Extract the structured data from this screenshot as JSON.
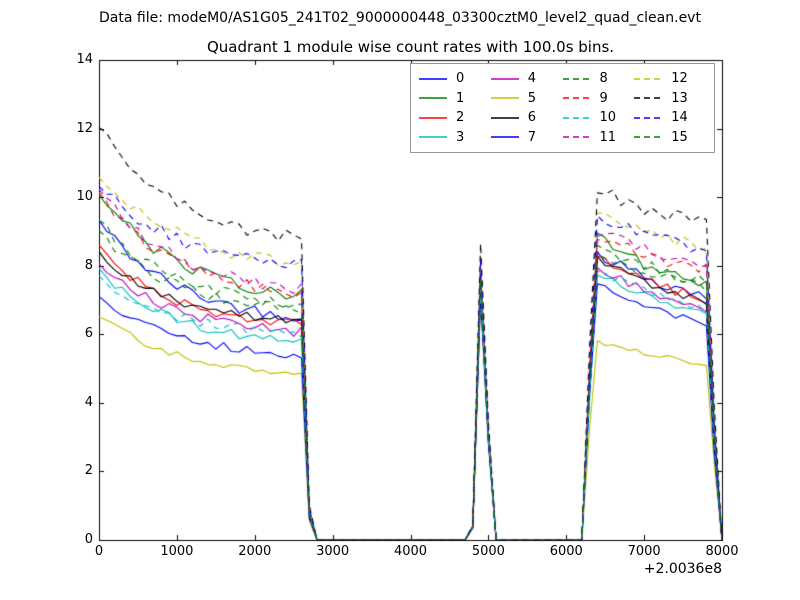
{
  "header": {
    "data_file": "Data file: modeM0/AS1G05_241T02_9000000448_03300cztM0_level2_quad_clean.evt"
  },
  "chart_data": {
    "type": "line",
    "title": "Quadrant 1 module wise count rates with 100.0s bins.",
    "xlabel": "",
    "ylabel": "",
    "xlim": [
      0,
      8000
    ],
    "ylim": [
      0,
      14
    ],
    "x_ticks": [
      0,
      1000,
      2000,
      3000,
      4000,
      5000,
      6000,
      7000,
      8000
    ],
    "y_ticks": [
      0,
      2,
      4,
      6,
      8,
      10,
      12,
      14
    ],
    "x_offset_label": "+2.0036e8",
    "bin_seconds": 100,
    "grid": false,
    "legend": {
      "location": "upper center",
      "columns": 4,
      "order": "column-major"
    },
    "profile": {
      "decay_tau_s": 1000,
      "segment1": {
        "x_start": 0,
        "x_end": 2700
      },
      "gap1": {
        "x_start": 2800,
        "x_end": 4700
      },
      "spike": {
        "x_rise": 4800,
        "x_peak": 4900,
        "x_fall": 5100
      },
      "gap2": {
        "x_start": 5100,
        "x_end": 6200
      },
      "segment3": {
        "x_rise": 6250,
        "x_peak": 6400,
        "x_end": 7950,
        "decay_tau_s": 1400
      }
    },
    "series": [
      {
        "label": "0",
        "color": "#0000ff",
        "linestyle": "solid",
        "start": 9.3,
        "plateau": 6.3,
        "spike_peak": 7.5,
        "seg3_peak": 8.4,
        "seg3_end": 6.4,
        "jitter": 0.18
      },
      {
        "label": "1",
        "color": "#008000",
        "linestyle": "solid",
        "start": 10.2,
        "plateau": 6.9,
        "spike_peak": 7.8,
        "seg3_peak": 8.8,
        "seg3_end": 6.6,
        "jitter": 0.18
      },
      {
        "label": "2",
        "color": "#ff0000",
        "linestyle": "solid",
        "start": 8.5,
        "plateau": 6.1,
        "spike_peak": 7.4,
        "seg3_peak": 8.3,
        "seg3_end": 6.3,
        "jitter": 0.15
      },
      {
        "label": "3",
        "color": "#00bfbf",
        "linestyle": "solid",
        "start": 7.85,
        "plateau": 5.6,
        "spike_peak": 7.2,
        "seg3_peak": 7.8,
        "seg3_end": 6.0,
        "jitter": 0.13
      },
      {
        "label": "4",
        "color": "#bf00bf",
        "linestyle": "solid",
        "start": 8.1,
        "plateau": 5.9,
        "spike_peak": 7.3,
        "seg3_peak": 8.0,
        "seg3_end": 6.1,
        "jitter": 0.15
      },
      {
        "label": "5",
        "color": "#bfbf00",
        "linestyle": "solid",
        "start": 6.6,
        "plateau": 4.7,
        "spike_peak": 7.0,
        "seg3_peak": 5.8,
        "seg3_end": 4.8,
        "jitter": 0.1
      },
      {
        "label": "6",
        "color": "#000000",
        "linestyle": "solid",
        "start": 8.35,
        "plateau": 6.2,
        "spike_peak": 7.4,
        "seg3_peak": 8.2,
        "seg3_end": 6.3,
        "jitter": 0.13
      },
      {
        "label": "7",
        "color": "#0000ff",
        "linestyle": "solid",
        "start": 7.0,
        "plateau": 5.3,
        "spike_peak": 7.1,
        "seg3_peak": 7.5,
        "seg3_end": 5.7,
        "jitter": 0.15
      },
      {
        "label": "8",
        "color": "#008000",
        "linestyle": "dashed",
        "start": 9.3,
        "plateau": 6.7,
        "spike_peak": 7.7,
        "seg3_peak": 8.6,
        "seg3_end": 6.9,
        "jitter": 0.18
      },
      {
        "label": "9",
        "color": "#ff0000",
        "linestyle": "dashed",
        "start": 10.05,
        "plateau": 7.0,
        "spike_peak": 7.9,
        "seg3_peak": 8.9,
        "seg3_end": 7.3,
        "jitter": 0.18
      },
      {
        "label": "10",
        "color": "#00bfbf",
        "linestyle": "dashed",
        "start": 7.6,
        "plateau": 5.9,
        "spike_peak": 7.3,
        "seg3_peak": 7.9,
        "seg3_end": 6.1,
        "jitter": 0.13
      },
      {
        "label": "11",
        "color": "#bf00bf",
        "linestyle": "dashed",
        "start": 10.2,
        "plateau": 7.1,
        "spike_peak": 8.0,
        "seg3_peak": 9.0,
        "seg3_end": 7.5,
        "jitter": 0.18
      },
      {
        "label": "12",
        "color": "#bfbf00",
        "linestyle": "dashed",
        "start": 10.7,
        "plateau": 7.9,
        "spike_peak": 8.3,
        "seg3_peak": 9.6,
        "seg3_end": 8.0,
        "jitter": 0.2
      },
      {
        "label": "13",
        "color": "#000000",
        "linestyle": "dashed",
        "start": 12.15,
        "plateau": 8.5,
        "spike_peak": 8.65,
        "seg3_peak": 10.2,
        "seg3_end": 8.7,
        "jitter": 0.22
      },
      {
        "label": "14",
        "color": "#0000ff",
        "linestyle": "dashed",
        "start": 10.45,
        "plateau": 7.8,
        "spike_peak": 8.2,
        "seg3_peak": 9.4,
        "seg3_end": 7.9,
        "jitter": 0.2
      },
      {
        "label": "15",
        "color": "#008000",
        "linestyle": "dashed",
        "start": 9.0,
        "plateau": 6.5,
        "spike_peak": 7.6,
        "seg3_peak": 8.4,
        "seg3_end": 6.8,
        "jitter": 0.18
      }
    ]
  }
}
